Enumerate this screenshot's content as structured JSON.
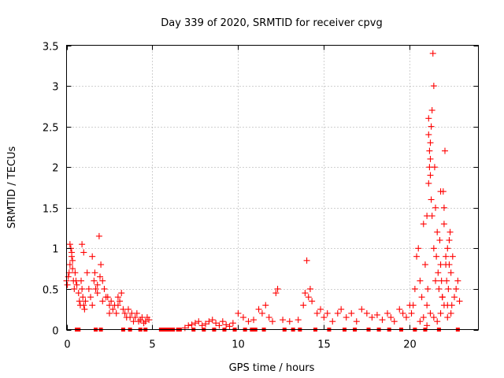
{
  "chart_data": {
    "type": "scatter",
    "title": "Day 339 of 2020, SRMTID for receiver cpvg",
    "xlabel": "GPS time / hours",
    "ylabel": "SRMTID / TECUs",
    "xlim": [
      0,
      24
    ],
    "ylim": [
      0,
      3.5
    ],
    "xticks": [
      0,
      5,
      10,
      15,
      20
    ],
    "xtick_labels": [
      "0",
      "5",
      "10",
      "15",
      "20"
    ],
    "yticks": [
      0,
      0.5,
      1,
      1.5,
      2,
      2.5,
      3,
      3.5
    ],
    "ytick_labels": [
      "0",
      "0.5",
      "1",
      "1.5",
      "2",
      "2.5",
      "3",
      "3.5"
    ],
    "grid": true,
    "marker": "+",
    "series": [
      {
        "name": "SRMTID",
        "color": "#ff0000",
        "x": [
          0.0,
          0.05,
          0.1,
          0.15,
          0.2,
          0.25,
          0.3,
          0.35,
          0.4,
          0.45,
          0.5,
          0.55,
          0.6,
          0.2,
          0.3,
          0.35,
          0.7,
          0.75,
          0.8,
          0.85,
          0.9,
          0.95,
          1.0,
          1.05,
          1.1,
          0.9,
          1.0,
          1.2,
          1.3,
          1.4,
          1.5,
          1.6,
          1.7,
          1.8,
          1.9,
          2.0,
          2.1,
          2.2,
          2.3,
          1.5,
          1.65,
          1.8,
          1.95,
          2.1,
          2.4,
          2.5,
          2.6,
          2.7,
          2.8,
          2.9,
          3.0,
          3.1,
          3.2,
          3.3,
          2.5,
          3.0,
          3.4,
          3.5,
          3.6,
          3.7,
          3.8,
          3.9,
          4.0,
          4.1,
          4.2,
          4.3,
          4.4,
          4.5,
          4.6,
          4.7,
          4.8,
          5.6,
          6.0,
          6.5,
          6.9,
          7.1,
          7.3,
          7.5,
          7.7,
          7.9,
          8.1,
          8.3,
          8.5,
          8.7,
          8.9,
          9.1,
          9.3,
          9.5,
          9.7,
          10.0,
          10.3,
          10.6,
          10.9,
          11.2,
          11.4,
          11.6,
          11.8,
          12.0,
          12.2,
          12.3,
          12.6,
          13.0,
          13.5,
          13.8,
          13.9,
          14.0,
          14.1,
          14.2,
          14.3,
          14.6,
          14.8,
          15.0,
          15.2,
          15.5,
          15.8,
          16.0,
          16.3,
          16.6,
          16.9,
          17.2,
          17.5,
          17.8,
          18.1,
          18.4,
          18.7,
          18.9,
          19.1,
          19.4,
          19.6,
          19.8,
          20.0,
          20.1,
          20.2,
          20.3,
          20.4,
          20.5,
          20.6,
          20.7,
          20.8,
          20.9,
          21.0,
          21.05,
          21.1,
          21.15,
          21.2,
          21.25,
          21.3,
          21.35,
          21.4,
          21.45,
          21.5,
          21.55,
          21.6,
          21.65,
          21.7,
          21.75,
          21.8,
          21.85,
          21.9,
          21.95,
          22.0,
          22.05,
          22.1,
          22.15,
          22.2,
          22.25,
          22.3,
          22.35,
          22.4,
          22.45,
          22.5,
          22.6,
          22.7,
          22.8,
          22.9,
          21.1,
          21.15,
          21.2,
          21.25,
          21.3,
          21.1,
          21.2,
          21.0,
          21.4,
          21.5,
          21.8,
          21.9,
          22.0,
          22.1,
          22.2,
          22.3,
          20.6,
          20.8,
          21.0,
          21.2,
          21.4,
          21.6,
          21.8,
          22.0,
          22.2,
          22.4,
          0.6,
          0.7,
          1.7,
          2.0,
          3.3,
          3.7,
          4.3,
          4.6,
          5.5,
          5.8,
          6.2,
          6.6,
          7.4,
          8.0,
          8.6,
          9.2,
          9.8,
          10.4,
          10.8,
          11.0,
          11.5,
          12.7,
          13.2,
          13.6,
          14.5,
          15.3,
          16.2,
          16.8,
          17.6,
          18.2,
          18.8,
          19.5,
          20.3,
          20.9,
          21.7,
          22.8
        ],
        "y": [
          0.6,
          0.55,
          0.65,
          0.7,
          0.8,
          1.0,
          0.9,
          0.75,
          0.6,
          0.5,
          0.7,
          0.6,
          0.55,
          1.05,
          0.95,
          0.85,
          0.45,
          0.35,
          0.3,
          0.6,
          0.5,
          0.4,
          0.3,
          0.25,
          0.35,
          1.05,
          0.95,
          0.7,
          0.5,
          0.4,
          0.9,
          0.6,
          0.5,
          0.45,
          1.15,
          0.8,
          0.6,
          0.5,
          0.4,
          0.3,
          0.7,
          0.55,
          0.65,
          0.35,
          0.4,
          0.3,
          0.35,
          0.25,
          0.3,
          0.2,
          0.4,
          0.35,
          0.45,
          0.25,
          0.2,
          0.3,
          0.2,
          0.15,
          0.25,
          0.15,
          0.2,
          0.1,
          0.15,
          0.2,
          0.1,
          0.12,
          0.15,
          0.08,
          0.1,
          0.15,
          0.12,
          0.0,
          0.0,
          0.0,
          0.02,
          0.05,
          0.06,
          0.08,
          0.1,
          0.05,
          0.07,
          0.1,
          0.12,
          0.08,
          0.05,
          0.1,
          0.06,
          0.04,
          0.08,
          0.2,
          0.15,
          0.1,
          0.12,
          0.25,
          0.2,
          0.3,
          0.15,
          0.1,
          0.45,
          0.5,
          0.12,
          0.1,
          0.12,
          0.3,
          0.45,
          0.85,
          0.4,
          0.5,
          0.35,
          0.2,
          0.25,
          0.15,
          0.2,
          0.1,
          0.2,
          0.25,
          0.15,
          0.2,
          0.1,
          0.25,
          0.2,
          0.15,
          0.18,
          0.12,
          0.2,
          0.15,
          0.1,
          0.25,
          0.2,
          0.15,
          0.3,
          0.2,
          0.3,
          0.5,
          0.9,
          1.0,
          0.6,
          0.4,
          1.3,
          0.8,
          1.4,
          0.5,
          1.8,
          2.0,
          2.3,
          2.5,
          2.7,
          3.4,
          3.0,
          2.0,
          1.5,
          0.9,
          1.2,
          0.7,
          0.5,
          1.1,
          0.8,
          0.6,
          0.4,
          1.7,
          1.3,
          2.2,
          0.9,
          0.6,
          1.0,
          0.5,
          0.8,
          1.2,
          0.7,
          0.3,
          0.9,
          0.4,
          0.5,
          0.6,
          0.35,
          2.4,
          2.2,
          1.9,
          1.6,
          1.4,
          2.6,
          2.1,
          0.3,
          1.0,
          0.6,
          1.7,
          0.4,
          1.5,
          0.8,
          0.3,
          1.1,
          0.1,
          0.15,
          0.05,
          0.2,
          0.15,
          0.1,
          0.2,
          0.3,
          0.15,
          0.2,
          0.0,
          0.0,
          0.0,
          0.0,
          0.0,
          0.0,
          0.0,
          0.0,
          0.0,
          0.0,
          0.0,
          0.0,
          0.0,
          0.0,
          0.0,
          0.0,
          0.0,
          0.0,
          0.0,
          0.0,
          0.0,
          0.0,
          0.0,
          0.0,
          0.0,
          0.0,
          0.0,
          0.0,
          0.0,
          0.0,
          0.0,
          0.0,
          0.0,
          0.0,
          0.0,
          0.0
        ]
      }
    ]
  }
}
